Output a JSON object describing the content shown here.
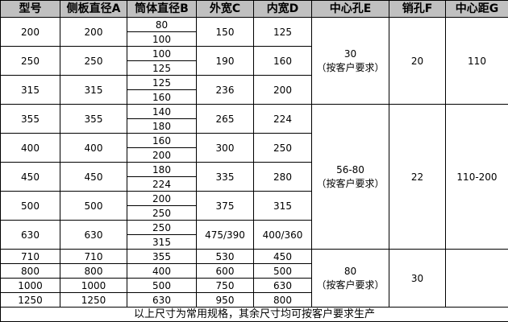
{
  "headers": [
    "型号",
    "侧板直径A",
    "筒体直径B",
    "外宽C",
    "内宽D",
    "中心孔E",
    "销孔F",
    "中心距G"
  ],
  "rows": [
    {
      "model": "200",
      "A": "200",
      "B": [
        "80",
        "100"
      ],
      "C": "150",
      "D": "125"
    },
    {
      "model": "250",
      "A": "250",
      "B": [
        "100",
        "125"
      ],
      "C": "190",
      "D": "160"
    },
    {
      "model": "315",
      "A": "315",
      "B": [
        "125",
        "160"
      ],
      "C": "236",
      "D": "200"
    },
    {
      "model": "355",
      "A": "355",
      "B": [
        "140",
        "180"
      ],
      "C": "265",
      "D": "224"
    },
    {
      "model": "400",
      "A": "400",
      "B": [
        "160",
        "200"
      ],
      "C": "300",
      "D": "250"
    },
    {
      "model": "450",
      "A": "450",
      "B": [
        "180",
        "224"
      ],
      "C": "335",
      "D": "280"
    },
    {
      "model": "500",
      "A": "500",
      "B": [
        "200",
        "250"
      ],
      "C": "375",
      "D": "315"
    },
    {
      "model": "630",
      "A": "630",
      "B": [
        "250",
        "315"
      ],
      "C": "475/390",
      "D": "400/360"
    },
    {
      "model": "710",
      "A": "710",
      "B": [
        "355"
      ],
      "C": "530",
      "D": "450"
    },
    {
      "model": "800",
      "A": "800",
      "B": [
        "400"
      ],
      "C": "600",
      "D": "500"
    },
    {
      "model": "1000",
      "A": "1000",
      "B": [
        "500"
      ],
      "C": "750",
      "D": "630"
    },
    {
      "model": "1250",
      "A": "1250",
      "B": [
        "630"
      ],
      "C": "950",
      "D": "800"
    }
  ],
  "groups": [
    {
      "first": 0,
      "count": 3,
      "E": "30",
      "E_note": "（按客户要求）",
      "F": "20",
      "G": "110"
    },
    {
      "first": 3,
      "count": 5,
      "E": "56-80",
      "E_note": "（按客户要求）",
      "F": "22",
      "G": "110-200"
    },
    {
      "first": 8,
      "count": 4,
      "E": "80",
      "E_note": "（按客户要求）",
      "F": "30",
      "G": ""
    }
  ],
  "footer": "以上尺寸为常用规格，其余尺寸均可按客户要求生产"
}
